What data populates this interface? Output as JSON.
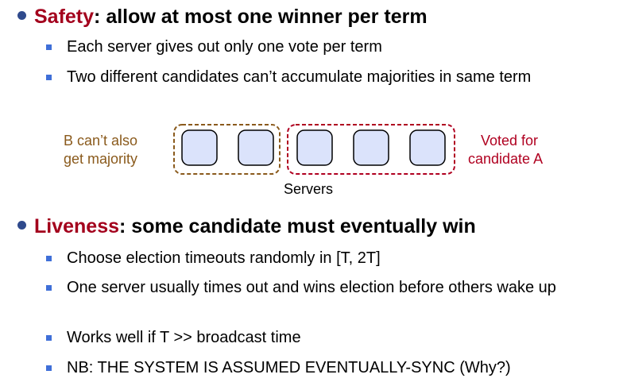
{
  "safety": {
    "keyword": "Safety",
    "rest": ":  allow at most one winner per term",
    "points": [
      "Each server gives out only one vote per term",
      "Two different candidates can’t accumulate majorities in same term"
    ]
  },
  "diagram": {
    "left_label_line1": "B can’t also",
    "left_label_line2": "get majority",
    "right_label_line1": "Voted for",
    "right_label_line2": "candidate A",
    "caption": "Servers",
    "colors": {
      "left_group": "#8a5a1c",
      "right_group": "#b00020",
      "server_fill": "#dbe3fb"
    }
  },
  "liveness": {
    "keyword": "Liveness",
    "rest": ": some candidate must eventually win",
    "points": [
      "Choose election timeouts randomly in [T, 2T]",
      "One server usually times out and wins election before others wake up",
      "Works well if T >> broadcast time",
      "NB: THE SYSTEM IS ASSUMED EVENTUALLY-SYNC (Why?)"
    ]
  }
}
